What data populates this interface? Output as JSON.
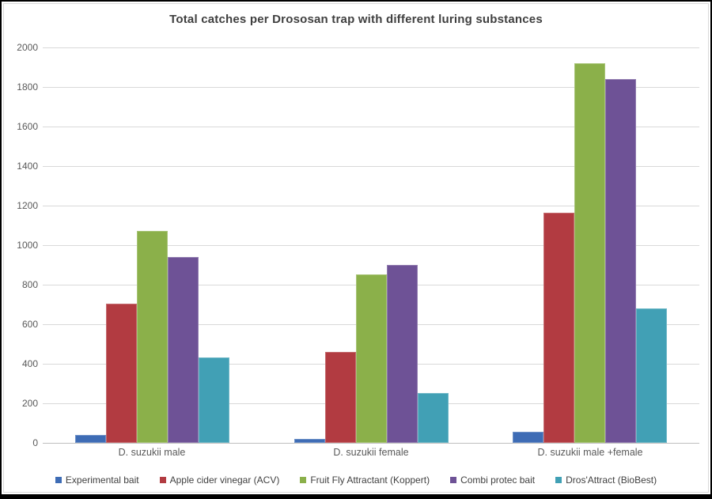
{
  "frame": {
    "background": "#ffffff",
    "outer_border_color": "#000000",
    "chart_border_color": "#d9d9d9"
  },
  "chart_data": {
    "type": "bar",
    "title": "Total catches per Drososan trap with different luring substances",
    "title_color": "#3f3f3f",
    "categories": [
      "D. suzukii male",
      "D. suzukii female",
      "D. suzukii male +female"
    ],
    "series": [
      {
        "name": "Experimental bait",
        "color": "#3e6cb5",
        "values": [
          40,
          20,
          55
        ]
      },
      {
        "name": "Apple cider vinegar (ACV)",
        "color": "#b23b41",
        "values": [
          705,
          460,
          1165
        ]
      },
      {
        "name": "Fruit Fly Attractant (Koppert)",
        "color": "#8bb04a",
        "values": [
          1070,
          850,
          1920
        ]
      },
      {
        "name": "Combi protec bait",
        "color": "#6e5296",
        "values": [
          940,
          900,
          1840
        ]
      },
      {
        "name": "Dros'Attract (BioBest)",
        "color": "#41a0b5",
        "values": [
          430,
          250,
          680
        ]
      }
    ],
    "xlabel": "",
    "ylabel": "",
    "ylim": [
      0,
      2000
    ],
    "yticks": [
      0,
      200,
      400,
      600,
      800,
      1000,
      1200,
      1400,
      1600,
      1800,
      2000
    ],
    "grid": "horizontal",
    "gridline_color": "#d9d9d9",
    "axis_line_color": "#bfbfbf",
    "tick_label_color": "#595959",
    "legend_position": "bottom"
  }
}
